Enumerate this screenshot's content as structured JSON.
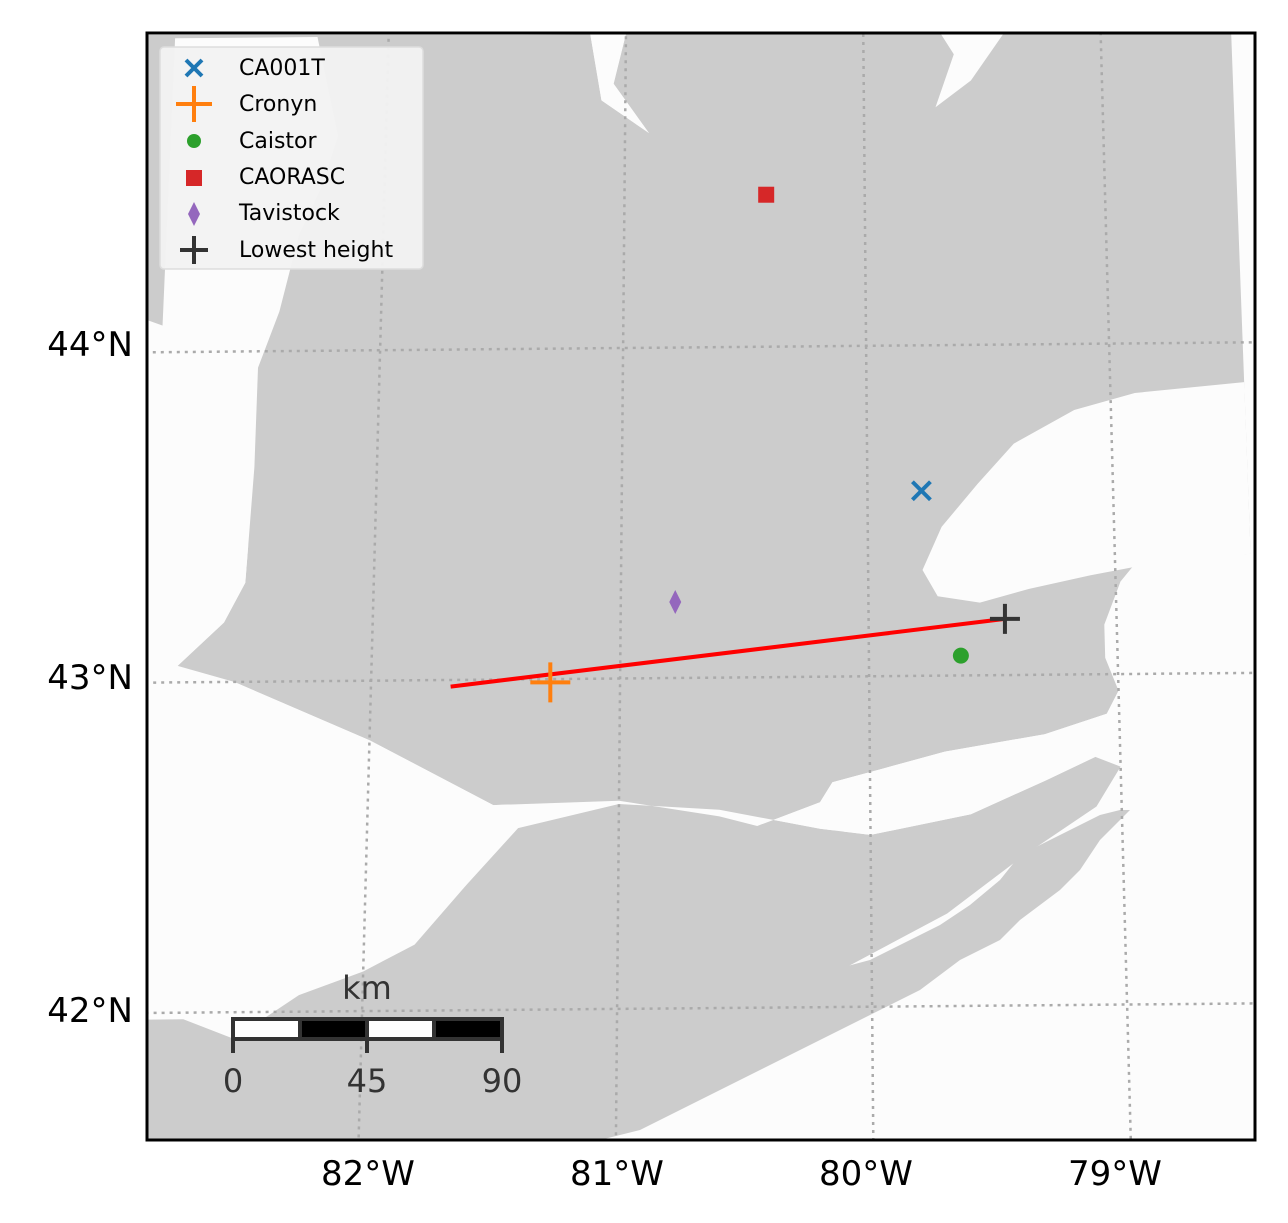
{
  "map": {
    "extent": {
      "lon": [
        -82.9,
        -78.45
      ],
      "lat": [
        41.6,
        44.95
      ]
    },
    "projection_note": "graticule tilted (conic)",
    "colors": {
      "land": "#cccccc",
      "water": "#fcfcfc",
      "grid": "#aaaaaa",
      "frame": "#000000"
    },
    "x_ticks": [
      {
        "lon": -82,
        "label": "82°W"
      },
      {
        "lon": -81,
        "label": "81°W"
      },
      {
        "lon": -80,
        "label": "80°W"
      },
      {
        "lon": -79,
        "label": "79°W"
      }
    ],
    "y_ticks": [
      {
        "lat": 44,
        "label": "44°N"
      },
      {
        "lat": 43,
        "label": "43°N"
      },
      {
        "lat": 42,
        "label": "42°N"
      }
    ]
  },
  "legend": {
    "placement": "top-left",
    "entries": [
      {
        "label": "CA001T",
        "marker": "x",
        "color": "#1f77b4"
      },
      {
        "label": "Cronyn",
        "marker": "plus-large",
        "color": "#ff7f0e"
      },
      {
        "label": "Caistor",
        "marker": "circle",
        "color": "#2ca02c"
      },
      {
        "label": "CAORASC",
        "marker": "square",
        "color": "#d62728"
      },
      {
        "label": "Tavistock",
        "marker": "diamond",
        "color": "#9467bd"
      },
      {
        "label": "Lowest height",
        "marker": "plus",
        "color": "#333333"
      }
    ]
  },
  "stations": [
    {
      "label": "CA001T",
      "lon": -79.78,
      "lat": 43.56
    },
    {
      "label": "Cronyn",
      "lon": -81.28,
      "lat": 42.99
    },
    {
      "label": "Caistor",
      "lon": -79.63,
      "lat": 43.06
    },
    {
      "label": "CAORASC",
      "lon": -80.41,
      "lat": 44.46
    },
    {
      "label": "Tavistock",
      "lon": -80.78,
      "lat": 43.23
    },
    {
      "label": "Lowest height",
      "lon": -79.45,
      "lat": 43.17
    }
  ],
  "trajectory": {
    "color": "#ff0000",
    "start": {
      "lon": -81.68,
      "lat": 42.98
    },
    "end": {
      "lon": -79.45,
      "lat": 43.17
    }
  },
  "scale_bar": {
    "unit": "km",
    "labels": [
      "0",
      "45",
      "90"
    ]
  }
}
